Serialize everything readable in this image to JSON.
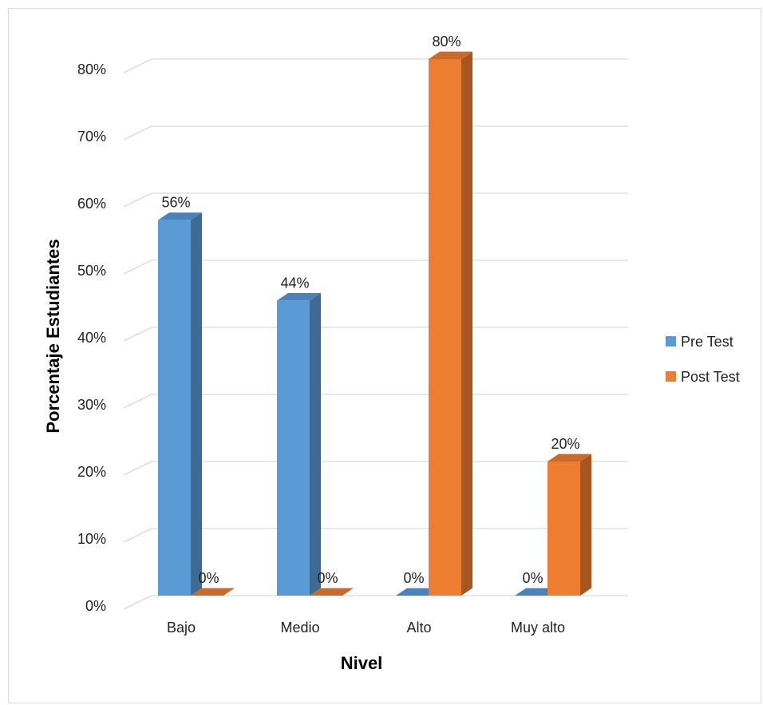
{
  "chart_data": {
    "type": "bar",
    "categories": [
      "Bajo",
      "Medio",
      "Alto",
      "Muy alto"
    ],
    "series": [
      {
        "name": "Pre Test",
        "values": [
          56,
          44,
          0,
          0
        ]
      },
      {
        "name": "Post Test",
        "values": [
          0,
          0,
          80,
          20
        ]
      }
    ],
    "data_labels": [
      [
        "56%",
        "44%",
        "0%",
        "0%"
      ],
      [
        "0%",
        "0%",
        "80%",
        "20%"
      ]
    ],
    "y_tick_labels": [
      "0%",
      "10%",
      "20%",
      "30%",
      "40%",
      "50%",
      "60%",
      "70%",
      "80%"
    ],
    "y_ticks": [
      0,
      10,
      20,
      30,
      40,
      50,
      60,
      70,
      80
    ],
    "xlabel": "Nivel",
    "ylabel": "Porcentaje Estudiantes",
    "ylim": [
      0,
      80
    ],
    "grid": true,
    "legend_position": "right",
    "colors": {
      "Pre Test": {
        "front": "#5b9bd5",
        "side": "#3f6a94",
        "top": "#4a83ba"
      },
      "Post Test": {
        "front": "#ed7d31",
        "side": "#a8561f",
        "top": "#c9692a"
      },
      "grid": "#d9d9d9"
    }
  }
}
